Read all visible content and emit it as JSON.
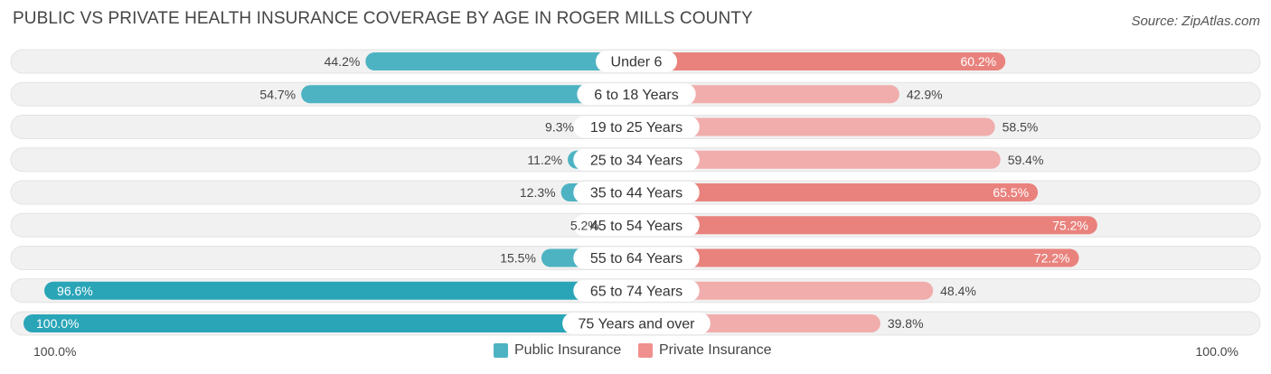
{
  "title": "PUBLIC VS PRIVATE HEALTH INSURANCE COVERAGE BY AGE IN ROGER MILLS COUNTY",
  "source": "Source: ZipAtlas.com",
  "colors": {
    "public": "#4db3c2",
    "public_dark": "#2aa5b8",
    "private": "#f0908e",
    "private_dark": "#e87570",
    "track": "#f1f1f1"
  },
  "legend": {
    "public_label": "Public Insurance",
    "private_label": "Private Insurance"
  },
  "axis": {
    "left_label": "100.0%",
    "right_label": "100.0%"
  },
  "chart_data": {
    "type": "bar",
    "orientation": "horizontal-diverging",
    "title": "PUBLIC VS PRIVATE HEALTH INSURANCE COVERAGE BY AGE IN ROGER MILLS COUNTY",
    "categories": [
      "Under 6",
      "6 to 18 Years",
      "19 to 25 Years",
      "25 to 34 Years",
      "35 to 44 Years",
      "45 to 54 Years",
      "55 to 64 Years",
      "65 to 74 Years",
      "75 Years and over"
    ],
    "series": [
      {
        "name": "Public Insurance",
        "values": [
          44.2,
          54.7,
          9.3,
          11.2,
          12.3,
          5.2,
          15.5,
          96.6,
          100.0
        ],
        "labels": [
          "44.2%",
          "54.7%",
          "9.3%",
          "11.2%",
          "12.3%",
          "5.2%",
          "15.5%",
          "96.6%",
          "100.0%"
        ]
      },
      {
        "name": "Private Insurance",
        "values": [
          60.2,
          42.9,
          58.5,
          59.4,
          65.5,
          75.2,
          72.2,
          48.4,
          39.8
        ],
        "labels": [
          "60.2%",
          "42.9%",
          "58.5%",
          "59.4%",
          "65.5%",
          "75.2%",
          "72.2%",
          "48.4%",
          "39.8%"
        ]
      }
    ],
    "xlim": [
      -100,
      100
    ],
    "unit": "%",
    "legend_position": "bottom-center"
  }
}
